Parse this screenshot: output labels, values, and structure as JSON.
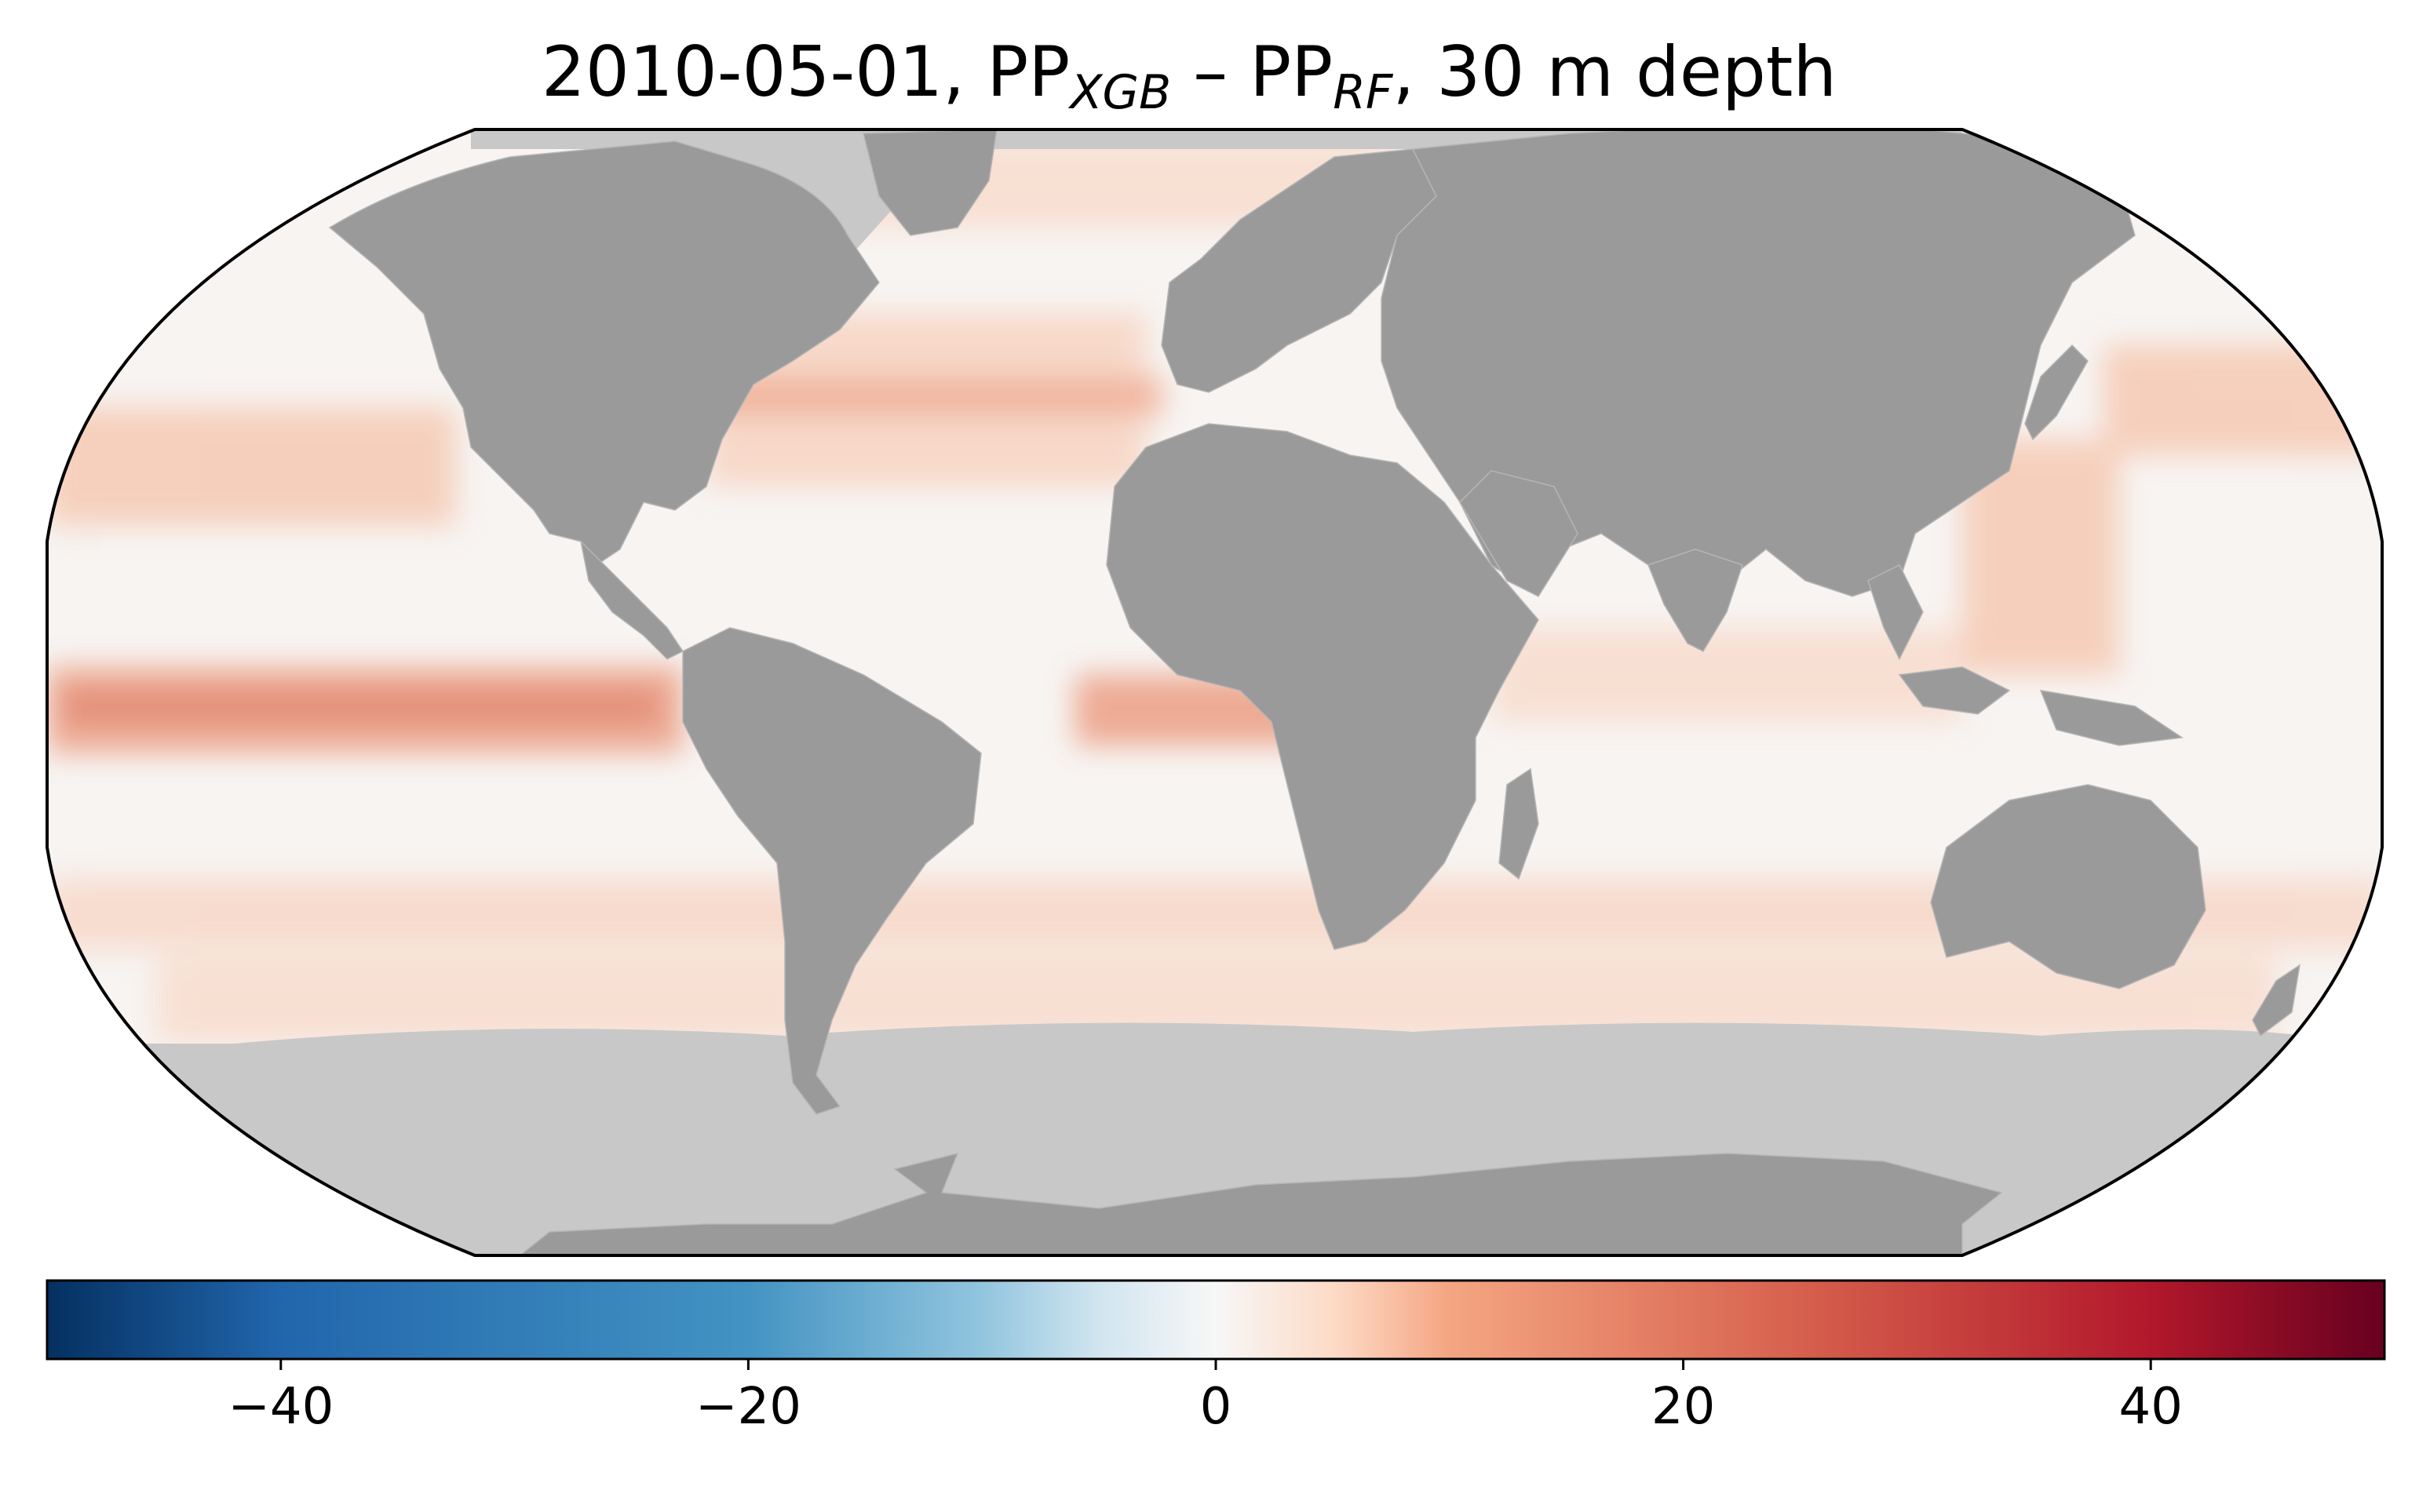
{
  "figure": {
    "title": {
      "date": "2010-05-01",
      "separator": ",",
      "term1_base": "PP",
      "term1_sub": "XGB",
      "minus": " – ",
      "term2_base": "PP",
      "term2_sub": "RF",
      "suffix": ", 30 m depth"
    }
  },
  "map": {
    "projection": "robinson",
    "colors": {
      "land": "#9a9a9a",
      "no_data_ocean": "#c8c8c8",
      "ocean_base": "#f7f4f2",
      "outline": "#000000"
    }
  },
  "colorbar": {
    "label": "",
    "colormap": "RdBu_r",
    "min": -50,
    "max": 50,
    "ticks": [
      -40,
      -20,
      0,
      20,
      40
    ],
    "tick_labels": [
      "−40",
      "−20",
      "0",
      "20",
      "40"
    ],
    "colors": {
      "min": "#053061",
      "low": "#2166ac",
      "mid_low": "#92c5de",
      "center": "#f7f7f7",
      "mid_high": "#f4a582",
      "high": "#b2182b",
      "max": "#67001f"
    }
  }
}
